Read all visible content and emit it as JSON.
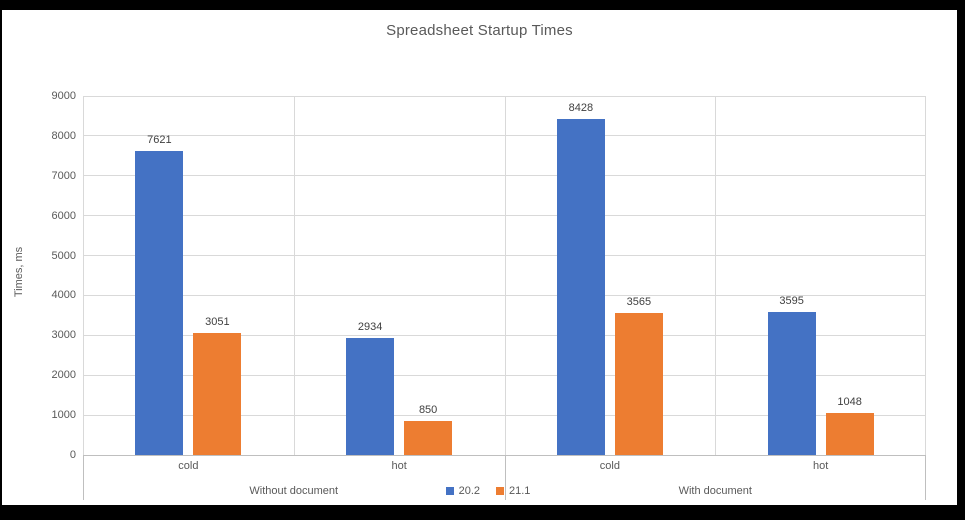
{
  "chart_data": {
    "type": "bar",
    "title": "Spreadsheet Startup Times",
    "xlabel": "",
    "ylabel": "Times, ms",
    "ylim": [
      0,
      9000
    ],
    "yticks": [
      0,
      1000,
      2000,
      3000,
      4000,
      5000,
      6000,
      7000,
      8000,
      9000
    ],
    "grid": true,
    "legend_position": "bottom-center",
    "categories": [
      "cold",
      "hot",
      "cold",
      "hot"
    ],
    "groups": [
      {
        "label": "Without document",
        "span": [
          0,
          2
        ]
      },
      {
        "label": "With document",
        "span": [
          2,
          4
        ]
      }
    ],
    "series": [
      {
        "name": "20.2",
        "color": "#4472C4",
        "values": [
          7621,
          2934,
          8428,
          3595
        ]
      },
      {
        "name": "21.1",
        "color": "#ED7D31",
        "values": [
          3051,
          850,
          3565,
          1048
        ]
      }
    ]
  },
  "colors": {
    "series_blue": "#4472C4",
    "series_orange": "#ED7D31",
    "frame": "#000000",
    "background": "#FFFFFF",
    "gridline": "#D9D9D9",
    "axis_line": "#BFBFBF",
    "axis_text": "#595959",
    "data_label_text": "#404040"
  }
}
